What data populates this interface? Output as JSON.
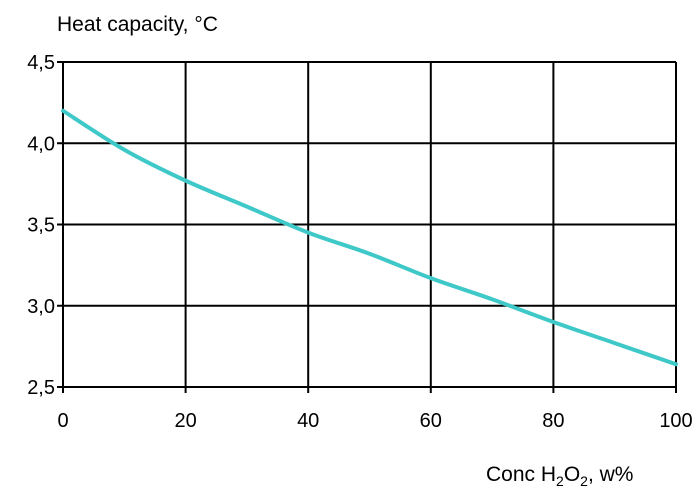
{
  "chart_data": {
    "type": "line",
    "ylabel": "Heat capacity, °C",
    "xlabel": {
      "prefix": "Conc H",
      "sub1": "2",
      "mid": "O",
      "sub2": "2",
      "suffix": ", w%"
    },
    "xlim": [
      0,
      100
    ],
    "ylim": [
      2.5,
      4.5
    ],
    "x_ticks": [
      0,
      20,
      40,
      60,
      80,
      100
    ],
    "y_ticks": [
      2.5,
      3.0,
      3.5,
      4.0,
      4.5
    ],
    "x_tick_labels": [
      "0",
      "20",
      "40",
      "60",
      "80",
      "100"
    ],
    "y_tick_labels": [
      "2,5",
      "3,0",
      "3,5",
      "4,0",
      "4,5"
    ],
    "grid": true,
    "line_color": "#3ec8c8",
    "series": [
      {
        "x": [
          0,
          10,
          20,
          30,
          40,
          50,
          60,
          70,
          80,
          90,
          100
        ],
        "y": [
          4.2,
          3.96,
          3.77,
          3.61,
          3.45,
          3.32,
          3.17,
          3.04,
          2.9,
          2.77,
          2.64
        ]
      }
    ]
  }
}
